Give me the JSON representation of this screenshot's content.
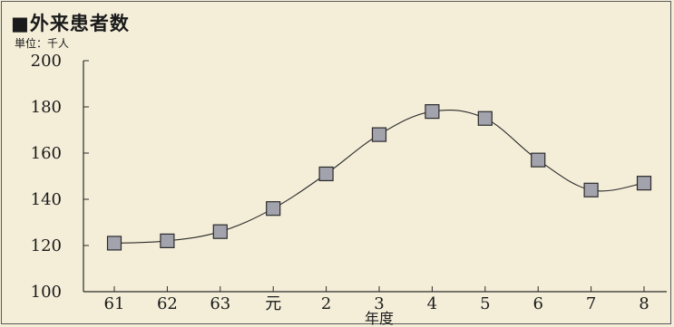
{
  "header": {
    "title": "■外来患者数",
    "unit": "単位：千人"
  },
  "chart_data": {
    "type": "line",
    "title": "■外来患者数",
    "unit_label": "単位：千人",
    "xlabel": "年度",
    "ylabel": "",
    "categories": [
      "61",
      "62",
      "63",
      "元",
      "2",
      "3",
      "4",
      "5",
      "6",
      "7",
      "8"
    ],
    "series": [
      {
        "values": [
          121,
          122,
          126,
          136,
          151,
          168,
          178,
          175,
          157,
          144,
          147
        ]
      }
    ],
    "ylim": [
      100,
      200
    ],
    "yticks": [
      100,
      120,
      140,
      160,
      180,
      200
    ],
    "grid": false,
    "legend": "none",
    "colors": {
      "marker_fill": "#a3a3ad",
      "marker_stroke": "#2a2a2a",
      "line": "#2a2a2a",
      "axis": "#2a2a2a",
      "background": "#f4eed9"
    }
  }
}
